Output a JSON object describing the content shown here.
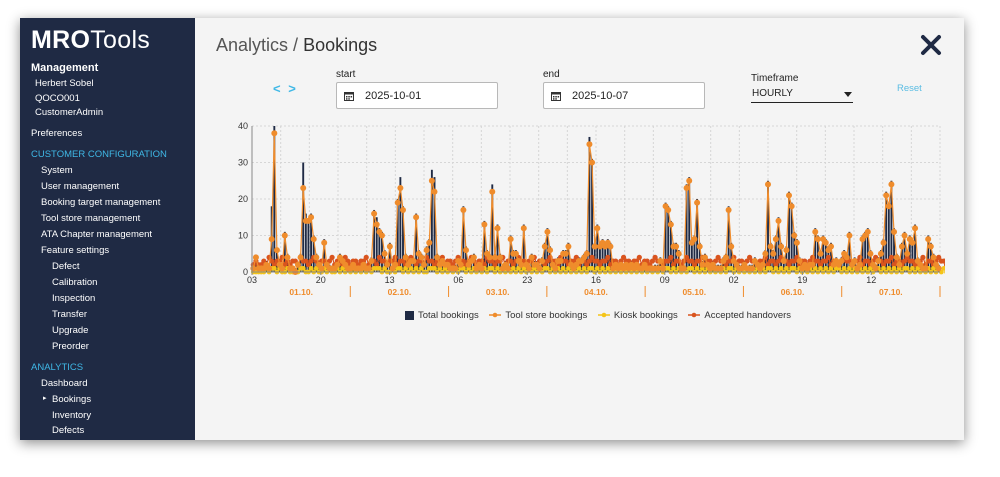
{
  "app": {
    "logo_bold": "MRO",
    "logo_light": "Tools"
  },
  "sidebar": {
    "heading": "Management",
    "user_name": "Herbert Sobel",
    "user_code": "QOCO001",
    "user_role": "CustomerAdmin",
    "preferences": "Preferences",
    "section_customer": "CUSTOMER CONFIGURATION",
    "customer_items": [
      "System",
      "User management",
      "Booking target management",
      "Tool store management",
      "ATA Chapter management",
      "Feature settings"
    ],
    "feature_items": [
      "Defect",
      "Calibration",
      "Inspection",
      "Transfer",
      "Upgrade",
      "Preorder"
    ],
    "section_analytics": "ANALYTICS",
    "analytics_items": [
      "Dashboard",
      "Bookings",
      "Inventory",
      "Defects"
    ],
    "active_item": "Bookings"
  },
  "header": {
    "section": "Analytics",
    "separator": "/",
    "title": "Bookings"
  },
  "filters": {
    "nav_arrows": "< >",
    "start_label": "start",
    "start_value": "2025-10-01",
    "end_label": "end",
    "end_value": "2025-10-07",
    "timeframe_label": "Timeframe",
    "timeframe_value": "HOURLY",
    "reset_label": "Reset"
  },
  "chart_data": {
    "type": "bar",
    "x_tick_labels": [
      "03",
      "20",
      "13",
      "06",
      "23",
      "16",
      "09",
      "02",
      "19",
      "12"
    ],
    "day_labels": [
      "01.10.",
      "02.10.",
      "03.10.",
      "04.10.",
      "05.10.",
      "06.10.",
      "07.10."
    ],
    "y_ticks": [
      0,
      10,
      20,
      30,
      40
    ],
    "ylim": [
      0,
      40
    ],
    "grid": true,
    "legend_position": "bottom",
    "colors": {
      "total": "#1f2a44",
      "tool_store": "#ef8c2c",
      "kiosk": "#f5c518",
      "handovers": "#d9541e"
    },
    "series": [
      {
        "name": "Total bookings",
        "style": "bar",
        "values": [
          1,
          4,
          2,
          1,
          1,
          3,
          2,
          18,
          40,
          6,
          3,
          2,
          11,
          5,
          2,
          1,
          1,
          2,
          5,
          30,
          16,
          14,
          16,
          10,
          5,
          3,
          2,
          9,
          3,
          2,
          1,
          2,
          3,
          5,
          4,
          3,
          2,
          2,
          3,
          2,
          2,
          1,
          3,
          2,
          2,
          4,
          17,
          15,
          12,
          11,
          6,
          3,
          8,
          2,
          3,
          20,
          26,
          18,
          5,
          3,
          4,
          4,
          16,
          6,
          5,
          3,
          7,
          9,
          28,
          26,
          5,
          3,
          4,
          3,
          3,
          2,
          2,
          2,
          4,
          3,
          18,
          7,
          3,
          4,
          5,
          2,
          3,
          2,
          14,
          6,
          5,
          24,
          5,
          13,
          5,
          2,
          3,
          2,
          10,
          6,
          6,
          4,
          3,
          13,
          3,
          2,
          5,
          3,
          3,
          2,
          4,
          8,
          12,
          7,
          3,
          2,
          4,
          4,
          6,
          6,
          8,
          3,
          2,
          3,
          4,
          4,
          5,
          6,
          37,
          31,
          8,
          13,
          8,
          9,
          8,
          9,
          8,
          2,
          3,
          2,
          3,
          2,
          3,
          2,
          3,
          1,
          3,
          2,
          2,
          3,
          2,
          2,
          1,
          2,
          2,
          4,
          2,
          19,
          18,
          14,
          8,
          8,
          6,
          2,
          1,
          24,
          26,
          9,
          10,
          20,
          8,
          3,
          5,
          3,
          2,
          3,
          2,
          2,
          2,
          4,
          5,
          18,
          8,
          4,
          3,
          2,
          2,
          3,
          1,
          2,
          2,
          4,
          3,
          2,
          3,
          6,
          25,
          8,
          6,
          10,
          15,
          8,
          4,
          7,
          22,
          19,
          11,
          9,
          4,
          2,
          3,
          2,
          3,
          3,
          12,
          10,
          6,
          10,
          9,
          7,
          8,
          3,
          4,
          3,
          4,
          6,
          5,
          11,
          3,
          4,
          2,
          3,
          10,
          11,
          12,
          6,
          3,
          2,
          4,
          6,
          9,
          22,
          19,
          25,
          12,
          5,
          3,
          8,
          11,
          6,
          10,
          9,
          13,
          4,
          3,
          2,
          2,
          10,
          8,
          5,
          3,
          2
        ]
      },
      {
        "name": "Tool store bookings",
        "style": "line",
        "values": [
          1,
          4,
          1,
          1,
          1,
          2,
          1,
          9,
          38,
          6,
          2,
          1,
          10,
          4,
          1,
          1,
          0,
          2,
          4,
          23,
          14,
          14,
          15,
          9,
          4,
          2,
          1,
          8,
          2,
          1,
          1,
          1,
          2,
          4,
          3,
          2,
          1,
          1,
          2,
          1,
          1,
          1,
          2,
          1,
          1,
          3,
          16,
          13,
          11,
          10,
          5,
          2,
          7,
          1,
          2,
          19,
          23,
          17,
          4,
          2,
          3,
          3,
          15,
          5,
          4,
          2,
          6,
          8,
          25,
          22,
          4,
          2,
          3,
          2,
          2,
          1,
          1,
          1,
          3,
          2,
          17,
          6,
          2,
          3,
          4,
          1,
          2,
          1,
          13,
          5,
          4,
          22,
          4,
          12,
          4,
          1,
          2,
          1,
          9,
          5,
          5,
          3,
          2,
          12,
          2,
          1,
          4,
          2,
          2,
          1,
          3,
          7,
          11,
          6,
          2,
          1,
          3,
          3,
          5,
          5,
          7,
          2,
          1,
          2,
          3,
          3,
          4,
          5,
          35,
          30,
          7,
          12,
          7,
          8,
          7,
          8,
          7,
          1,
          2,
          1,
          2,
          1,
          2,
          1,
          2,
          1,
          2,
          1,
          1,
          2,
          1,
          1,
          1,
          1,
          1,
          3,
          1,
          18,
          17,
          13,
          7,
          7,
          5,
          1,
          1,
          23,
          25,
          8,
          9,
          19,
          7,
          2,
          4,
          2,
          1,
          2,
          1,
          1,
          1,
          3,
          4,
          17,
          7,
          3,
          2,
          1,
          1,
          2,
          1,
          1,
          1,
          3,
          2,
          1,
          2,
          5,
          24,
          7,
          5,
          9,
          14,
          7,
          3,
          6,
          21,
          18,
          10,
          8,
          3,
          1,
          2,
          1,
          2,
          2,
          11,
          9,
          5,
          9,
          8,
          6,
          7,
          2,
          3,
          2,
          3,
          5,
          4,
          10,
          2,
          3,
          1,
          2,
          9,
          10,
          11,
          5,
          2,
          1,
          3,
          5,
          8,
          21,
          18,
          24,
          11,
          4,
          2,
          7,
          10,
          5,
          9,
          8,
          12,
          3,
          2,
          1,
          1,
          9,
          7,
          4,
          2,
          1
        ]
      },
      {
        "name": "Kiosk bookings",
        "style": "line",
        "values": [
          0,
          0,
          0,
          0,
          0,
          1,
          0,
          1,
          1,
          0,
          1,
          0,
          0,
          1,
          0,
          0,
          0,
          0,
          1,
          1,
          0,
          0,
          1,
          0,
          1,
          0,
          0,
          1,
          0,
          1,
          0,
          0,
          1,
          0,
          1,
          0,
          1,
          0,
          1,
          0,
          1,
          0,
          1,
          0,
          1,
          0,
          1,
          1,
          1,
          0,
          1,
          0,
          0,
          1,
          0,
          1,
          1,
          0,
          1,
          0,
          1,
          0,
          1,
          0,
          1,
          0,
          0,
          1,
          1,
          1,
          0,
          1,
          0,
          1,
          0,
          1,
          0,
          1,
          0,
          1,
          1,
          0,
          1,
          0,
          1,
          0,
          1,
          0,
          1,
          0,
          1,
          1,
          0,
          1,
          0,
          1,
          0,
          1,
          0,
          1,
          0,
          1,
          0,
          1,
          0,
          1,
          0,
          1,
          0,
          1,
          0,
          1,
          1,
          0,
          1,
          0,
          1,
          0,
          1,
          0,
          1,
          0,
          1,
          0,
          1,
          0,
          1,
          0,
          1,
          1,
          0,
          1,
          0,
          1,
          0,
          1,
          0,
          1,
          0,
          1,
          0,
          1,
          0,
          1,
          0,
          1,
          0,
          1,
          0,
          1,
          0,
          1,
          0,
          1,
          0,
          1,
          0,
          1,
          1,
          0,
          1,
          0,
          1,
          0,
          1,
          0,
          1,
          1,
          0,
          1,
          0,
          1,
          0,
          1,
          0,
          1,
          0,
          1,
          0,
          1,
          0,
          1,
          1,
          0,
          1,
          0,
          1,
          0,
          1,
          0,
          1,
          0,
          1,
          0,
          1,
          0,
          1,
          1,
          0,
          1,
          0,
          1,
          0,
          1,
          0,
          1,
          1,
          0,
          1,
          0,
          1,
          0,
          1,
          0,
          1,
          0,
          1,
          0,
          1,
          0,
          1,
          0,
          1,
          1,
          0,
          1,
          0,
          1,
          0,
          1,
          0,
          1,
          0,
          1,
          0,
          1,
          0,
          1,
          1,
          0,
          1,
          0,
          1,
          0,
          1,
          0,
          1,
          0,
          1,
          1,
          0,
          1,
          0,
          1,
          0,
          1,
          0,
          1,
          0,
          1,
          0,
          1,
          0,
          1,
          0,
          1,
          0,
          1
        ]
      },
      {
        "name": "Accepted handovers",
        "style": "line",
        "values": [
          2,
          3,
          2,
          2,
          3,
          2,
          4,
          3,
          2,
          3,
          3,
          4,
          2,
          3,
          2,
          3,
          3,
          2,
          4,
          3,
          3,
          2,
          3,
          4,
          3,
          2,
          3,
          3,
          2,
          3,
          4,
          2,
          3,
          3,
          2,
          4,
          3,
          2,
          3,
          3,
          2,
          3,
          3,
          4,
          2,
          3,
          3,
          2,
          4,
          3,
          3,
          2,
          3,
          3,
          4,
          2,
          3,
          3,
          2,
          3,
          4,
          3,
          2,
          3,
          3,
          2,
          4,
          3,
          3,
          2,
          3,
          3,
          4,
          2,
          3,
          3,
          2,
          3,
          4,
          3,
          3,
          2,
          3,
          4,
          3,
          2,
          3,
          3,
          2,
          4,
          3,
          3,
          2,
          3,
          3,
          4,
          2,
          3,
          3,
          2,
          3,
          4,
          3,
          3,
          2,
          3,
          3,
          4,
          2,
          3,
          3,
          2,
          3,
          4,
          3,
          3,
          2,
          4,
          3,
          3,
          2,
          3,
          3,
          4,
          2,
          3,
          3,
          2,
          3,
          4,
          3,
          3,
          2,
          3,
          3,
          4,
          2,
          3,
          3,
          2,
          3,
          4,
          3,
          3,
          2,
          3,
          3,
          4,
          2,
          3,
          3,
          2,
          3,
          4,
          3,
          3,
          2,
          3,
          3,
          4,
          2,
          3,
          3,
          2,
          3,
          4,
          3,
          3,
          2,
          3,
          3,
          4,
          2,
          3,
          3,
          2,
          3,
          4,
          3,
          3,
          2,
          3,
          3,
          4,
          2,
          3,
          3,
          2,
          3,
          4,
          3,
          3,
          2,
          3,
          3,
          4,
          2,
          3,
          3,
          2,
          3,
          4,
          3,
          3,
          2,
          3,
          3,
          4,
          2,
          3,
          3,
          2,
          3,
          4,
          3,
          3,
          2,
          3,
          3,
          4,
          2,
          3,
          3,
          2,
          3,
          4,
          3,
          3,
          2,
          3,
          3,
          4,
          2,
          3,
          3,
          2,
          3,
          4,
          3,
          3,
          2,
          3,
          3,
          4,
          2,
          3,
          3,
          2,
          3,
          4,
          3,
          3,
          2,
          3,
          3,
          4,
          2,
          3,
          3,
          2,
          3,
          4,
          3,
          3,
          2,
          3,
          3,
          4,
          2,
          3
        ]
      }
    ]
  }
}
